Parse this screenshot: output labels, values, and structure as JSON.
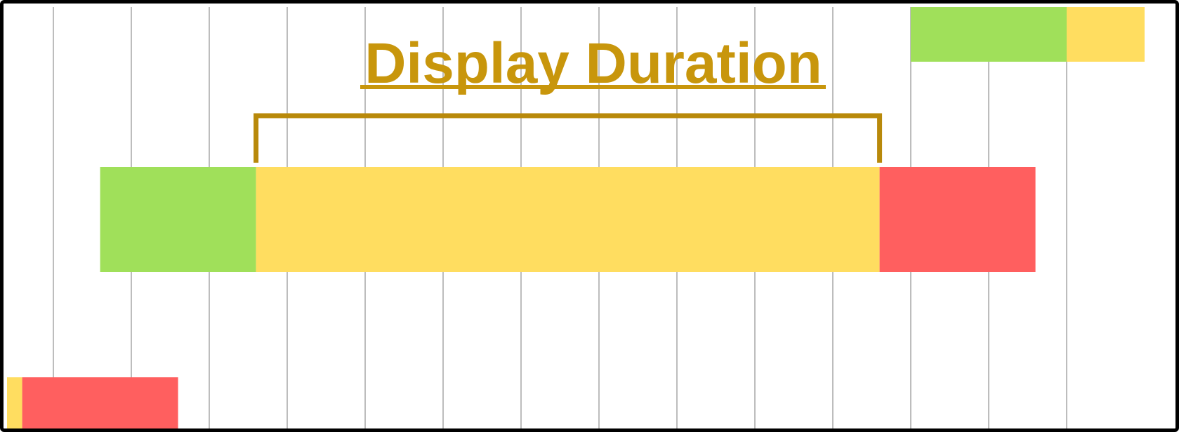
{
  "title": "Display Duration",
  "colors": {
    "title": "#C8960C",
    "bracket": "#B8890A",
    "grid": "#BDBDBD",
    "green": "#A0E05A",
    "yellow": "#FFDD60",
    "red": "#FF5F5F",
    "border": "#000000"
  },
  "timeline": {
    "columns": 15,
    "rows": [
      {
        "name": "row-top",
        "segments": [
          {
            "color": "green",
            "start": 12,
            "end": 14
          },
          {
            "color": "yellow",
            "start": 14,
            "end": 15
          }
        ]
      },
      {
        "name": "row-middle",
        "segments": [
          {
            "color": "green",
            "start": 1.6,
            "end": 3.6
          },
          {
            "color": "yellow",
            "start": 3.6,
            "end": 11.6
          },
          {
            "color": "red",
            "start": 11.6,
            "end": 13.6
          }
        ]
      },
      {
        "name": "row-bottom",
        "segments": [
          {
            "color": "yellow",
            "start": 0,
            "end": 0.6
          },
          {
            "color": "red",
            "start": 0.6,
            "end": 2.6
          }
        ]
      }
    ],
    "bracket": {
      "start": 3.6,
      "end": 11.6
    }
  }
}
